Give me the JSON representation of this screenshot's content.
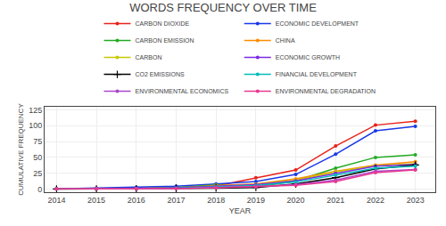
{
  "chart_data": {
    "type": "line",
    "title": "WORDS FREQUENCY OVER TIME",
    "xlabel": "YEAR",
    "ylabel": "CUMULATIVE FREQUENCY",
    "x": [
      2014,
      2015,
      2016,
      2017,
      2018,
      2019,
      2020,
      2021,
      2022,
      2023
    ],
    "series": [
      {
        "name": "CARBON DIOXIDE",
        "color": "#e8221a",
        "marker": "circle",
        "values": [
          0.2,
          0.5,
          1.0,
          2.0,
          5.0,
          18.0,
          30.0,
          68.0,
          101.0,
          107.0
        ]
      },
      {
        "name": "ECONOMIC DEVELOPMENT",
        "color": "#1a38e8",
        "marker": "circle",
        "values": [
          0.1,
          1.5,
          2.5,
          4.5,
          8.0,
          12.0,
          23.0,
          55.0,
          92.0,
          99.0
        ]
      },
      {
        "name": "CARBON EMISSION",
        "color": "#22aa22",
        "marker": "circle",
        "values": [
          0.1,
          0.2,
          0.5,
          2.5,
          6.5,
          3.0,
          13.0,
          33.0,
          50.0,
          54.0
        ]
      },
      {
        "name": "CHINA",
        "color": "#ff8c00",
        "marker": "circle",
        "values": [
          0.1,
          0.2,
          0.5,
          1.5,
          5.5,
          8.0,
          16.0,
          28.0,
          38.0,
          43.0
        ]
      },
      {
        "name": "CARBON",
        "color": "#c8c800",
        "marker": "circle",
        "values": [
          0.1,
          0.2,
          0.4,
          1.2,
          4.0,
          7.0,
          14.0,
          27.0,
          37.0,
          40.0
        ]
      },
      {
        "name": "ECONOMIC GROWTH",
        "color": "#7b2be2",
        "marker": "circle",
        "values": [
          0.1,
          0.3,
          0.8,
          2.0,
          4.5,
          7.0,
          13.0,
          25.0,
          36.0,
          39.0
        ]
      },
      {
        "name": "CO2 EMISSIONS",
        "color": "#000000",
        "marker": "plus",
        "values": [
          0.0,
          0.1,
          0.2,
          1.0,
          1.5,
          2.5,
          8.0,
          18.0,
          32.0,
          38.0
        ]
      },
      {
        "name": "FINANCIAL DEVELOPMENT",
        "color": "#00bbbb",
        "marker": "circle",
        "values": [
          0.1,
          0.2,
          0.5,
          1.5,
          3.5,
          5.5,
          11.0,
          22.0,
          33.0,
          36.0
        ]
      },
      {
        "name": "ENVIRONMENTAL ECONOMICS",
        "color": "#aa44cc",
        "marker": "circle",
        "values": [
          0.1,
          0.2,
          0.4,
          1.0,
          2.5,
          4.0,
          7.0,
          14.0,
          28.0,
          31.0
        ]
      },
      {
        "name": "ENVIRONMENTAL DEGRADATION",
        "color": "#e83891",
        "marker": "circle",
        "values": [
          0.1,
          0.2,
          0.3,
          0.8,
          2.0,
          3.5,
          6.0,
          12.0,
          26.0,
          30.0
        ]
      }
    ],
    "xlim": [
      2013.7,
      2023.5
    ],
    "xticks": [
      2014,
      2015,
      2016,
      2017,
      2018,
      2019,
      2020,
      2021,
      2022,
      2023
    ],
    "ylim": [
      -5,
      130
    ],
    "yticks": [
      0,
      25,
      50,
      75,
      100,
      125
    ],
    "grid": true,
    "legend": "top"
  }
}
